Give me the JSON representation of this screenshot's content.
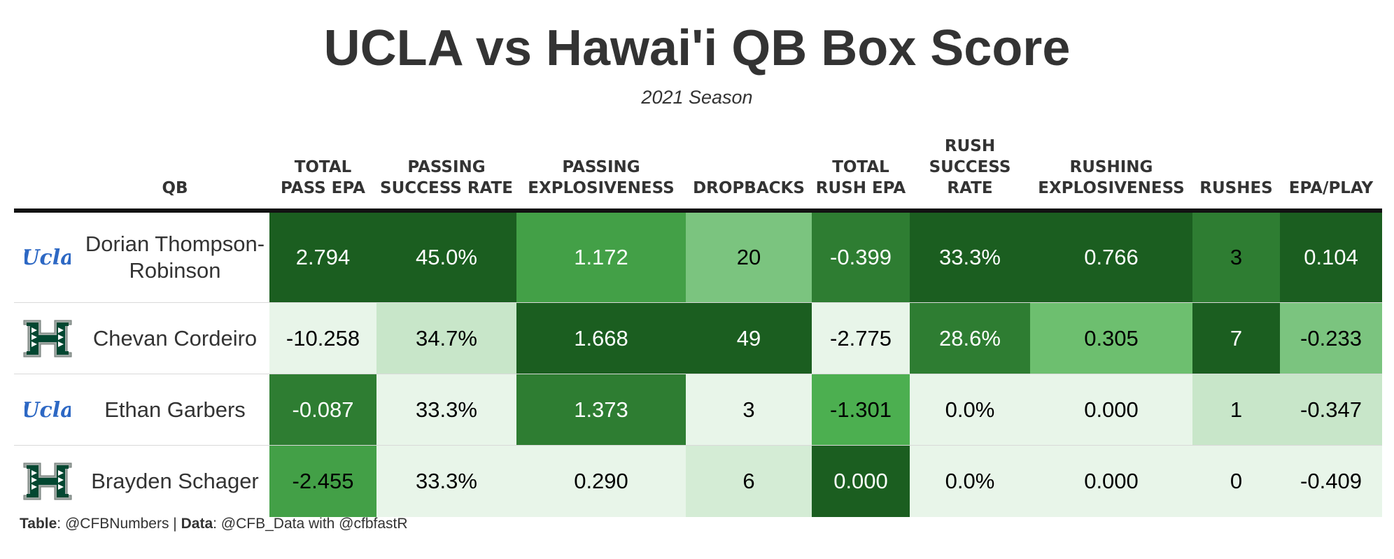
{
  "title": "UCLA vs Hawai'i QB Box Score",
  "subtitle": "2021 Season",
  "chart_data": {
    "type": "table",
    "columns": [
      "QB",
      "TOTAL PASS EPA",
      "PASSING SUCCESS RATE",
      "PASSING EXPLOSIVENESS",
      "DROPBACKS",
      "TOTAL RUSH EPA",
      "RUSH SUCCESS RATE",
      "RUSHING EXPLOSIVENESS",
      "RUSHES",
      "EPA/PLAY"
    ],
    "rows": [
      {
        "team": "UCLA",
        "logo": "ucla-logo",
        "qb": "Dorian Thompson-Robinson",
        "cells": [
          "2.794",
          "45.0%",
          "1.172",
          "20",
          "-0.399",
          "33.3%",
          "0.766",
          "3",
          "0.104"
        ]
      },
      {
        "team": "Hawaii",
        "logo": "hawaii-logo",
        "qb": "Chevan Cordeiro",
        "cells": [
          "-10.258",
          "34.7%",
          "1.668",
          "49",
          "-2.775",
          "28.6%",
          "0.305",
          "7",
          "-0.233"
        ]
      },
      {
        "team": "UCLA",
        "logo": "ucla-logo",
        "qb": "Ethan Garbers",
        "cells": [
          "-0.087",
          "33.3%",
          "1.373",
          "3",
          "-1.301",
          "0.0%",
          "0.000",
          "1",
          "-0.347"
        ]
      },
      {
        "team": "Hawaii",
        "logo": "hawaii-logo",
        "qb": "Brayden Schager",
        "cells": [
          "-2.455",
          "33.3%",
          "0.290",
          "6",
          "0.000",
          "0.0%",
          "0.000",
          "0",
          "-0.409"
        ]
      }
    ],
    "cell_colors": [
      [
        "#1b5e20",
        "#1b5e20",
        "#43a047",
        "#7bc47f",
        "#2e7d32",
        "#1b5e20",
        "#1b5e20",
        "#2e7d32",
        "#1b5e20"
      ],
      [
        "#e8f5e9",
        "#c8e6c9",
        "#1b5e20",
        "#1b5e20",
        "#e8f5e9",
        "#2e7d32",
        "#6dbf6f",
        "#1b5e20",
        "#7bc47f"
      ],
      [
        "#2e7d32",
        "#e8f5e9",
        "#2e7d32",
        "#e8f5e9",
        "#4caf50",
        "#e8f5e9",
        "#e8f5e9",
        "#c8e6c9",
        "#c8e6c9"
      ],
      [
        "#43a047",
        "#e8f5e9",
        "#e8f5e9",
        "#d4ecd5",
        "#1b5e20",
        "#e8f5e9",
        "#e8f5e9",
        "#e8f5e9",
        "#e8f5e9"
      ]
    ],
    "text_colors": [
      [
        "#ffffff",
        "#ffffff",
        "#ffffff",
        "#000000",
        "#ffffff",
        "#ffffff",
        "#ffffff",
        "#000000",
        "#ffffff"
      ],
      [
        "#000000",
        "#000000",
        "#ffffff",
        "#ffffff",
        "#000000",
        "#ffffff",
        "#000000",
        "#ffffff",
        "#000000"
      ],
      [
        "#ffffff",
        "#000000",
        "#ffffff",
        "#000000",
        "#000000",
        "#000000",
        "#000000",
        "#000000",
        "#000000"
      ],
      [
        "#000000",
        "#000000",
        "#000000",
        "#000000",
        "#ffffff",
        "#000000",
        "#000000",
        "#000000",
        "#000000"
      ]
    ]
  },
  "colors": {
    "ucla_blue": "#2d68c4",
    "hawaii_green": "#024731"
  },
  "footer": {
    "table_label": "Table",
    "table_value": ": @CFBNumbers | ",
    "data_label": "Data",
    "data_value": ": @CFB_Data with @cfbfastR"
  }
}
